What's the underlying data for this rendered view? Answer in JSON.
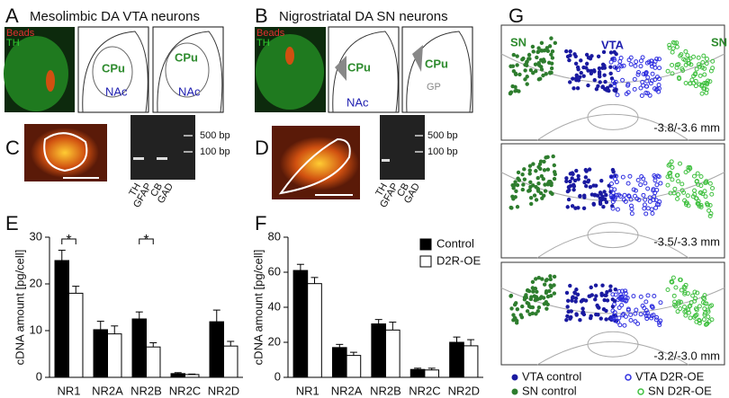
{
  "figure": {
    "A": {
      "label": "A",
      "title": "Mesolimbic DA VTA neurons",
      "beads": "Beads",
      "th": "TH",
      "regions": [
        "CPu",
        "NAc",
        "CPu",
        "NAc"
      ]
    },
    "B": {
      "label": "B",
      "title": "Nigrostriatal DA SN neurons",
      "beads": "Beads",
      "th": "TH",
      "regions": [
        "CPu",
        "NAc",
        "CPu",
        "GP"
      ]
    },
    "C": {
      "label": "C",
      "markers": [
        "500 bp",
        "100 bp"
      ],
      "lanes": [
        "TH",
        "GFAP",
        "CB",
        "GAD"
      ]
    },
    "D": {
      "label": "D",
      "markers": [
        "500 bp",
        "100 bp"
      ],
      "lanes": [
        "TH",
        "GFAP",
        "CB",
        "GAD"
      ]
    },
    "G": {
      "label": "G",
      "regions": [
        "SN",
        "VTA",
        "SN"
      ],
      "sections": [
        "-3.8/-3.6 mm",
        "-3.5/-3.3 mm",
        "-3.2/-3.0 mm"
      ],
      "legend": [
        "VTA control",
        "SN control",
        "VTA D2R-OE",
        "SN D2R-OE"
      ]
    }
  },
  "chart_data": [
    {
      "type": "bar",
      "panel": "E",
      "ylabel": "cDNA amount [pg/cell]",
      "categories": [
        "NR1",
        "NR2A",
        "NR2B",
        "NR2C",
        "NR2D"
      ],
      "series": [
        {
          "color": "#000000",
          "values": [
            25,
            10.2,
            12.5,
            0.8,
            11.9
          ],
          "errors": [
            2.2,
            1.8,
            1.5,
            0.2,
            2.5
          ]
        },
        {
          "color": "#ffffff",
          "values": [
            18,
            9.3,
            6.5,
            0.6,
            6.7
          ],
          "errors": [
            1.5,
            1.7,
            0.9,
            0.1,
            1.0
          ]
        }
      ],
      "annotations": [
        {
          "text": "*",
          "category": "NR1"
        },
        {
          "text": "*",
          "category": "NR2B"
        }
      ],
      "ylim": [
        0,
        30
      ],
      "yticks": [
        0,
        10,
        20,
        30
      ]
    },
    {
      "type": "bar",
      "panel": "F",
      "ylabel": "cDNA amount [pg/cell]",
      "categories": [
        "NR1",
        "NR2A",
        "NR2B",
        "NR2C",
        "NR2D"
      ],
      "series": [
        {
          "name": "Control",
          "color": "#000000",
          "values": [
            61,
            17,
            30.5,
            4.5,
            20
          ],
          "errors": [
            3.5,
            1.8,
            2.5,
            0.7,
            3
          ]
        },
        {
          "name": "D2R-OE",
          "color": "#ffffff",
          "values": [
            53.5,
            12.5,
            27,
            4.2,
            18
          ],
          "errors": [
            3.5,
            1.8,
            4.5,
            1,
            3.5
          ]
        }
      ],
      "ylim": [
        0,
        80
      ],
      "yticks": [
        0,
        20,
        40,
        60,
        80
      ],
      "legend": "upper right"
    }
  ]
}
